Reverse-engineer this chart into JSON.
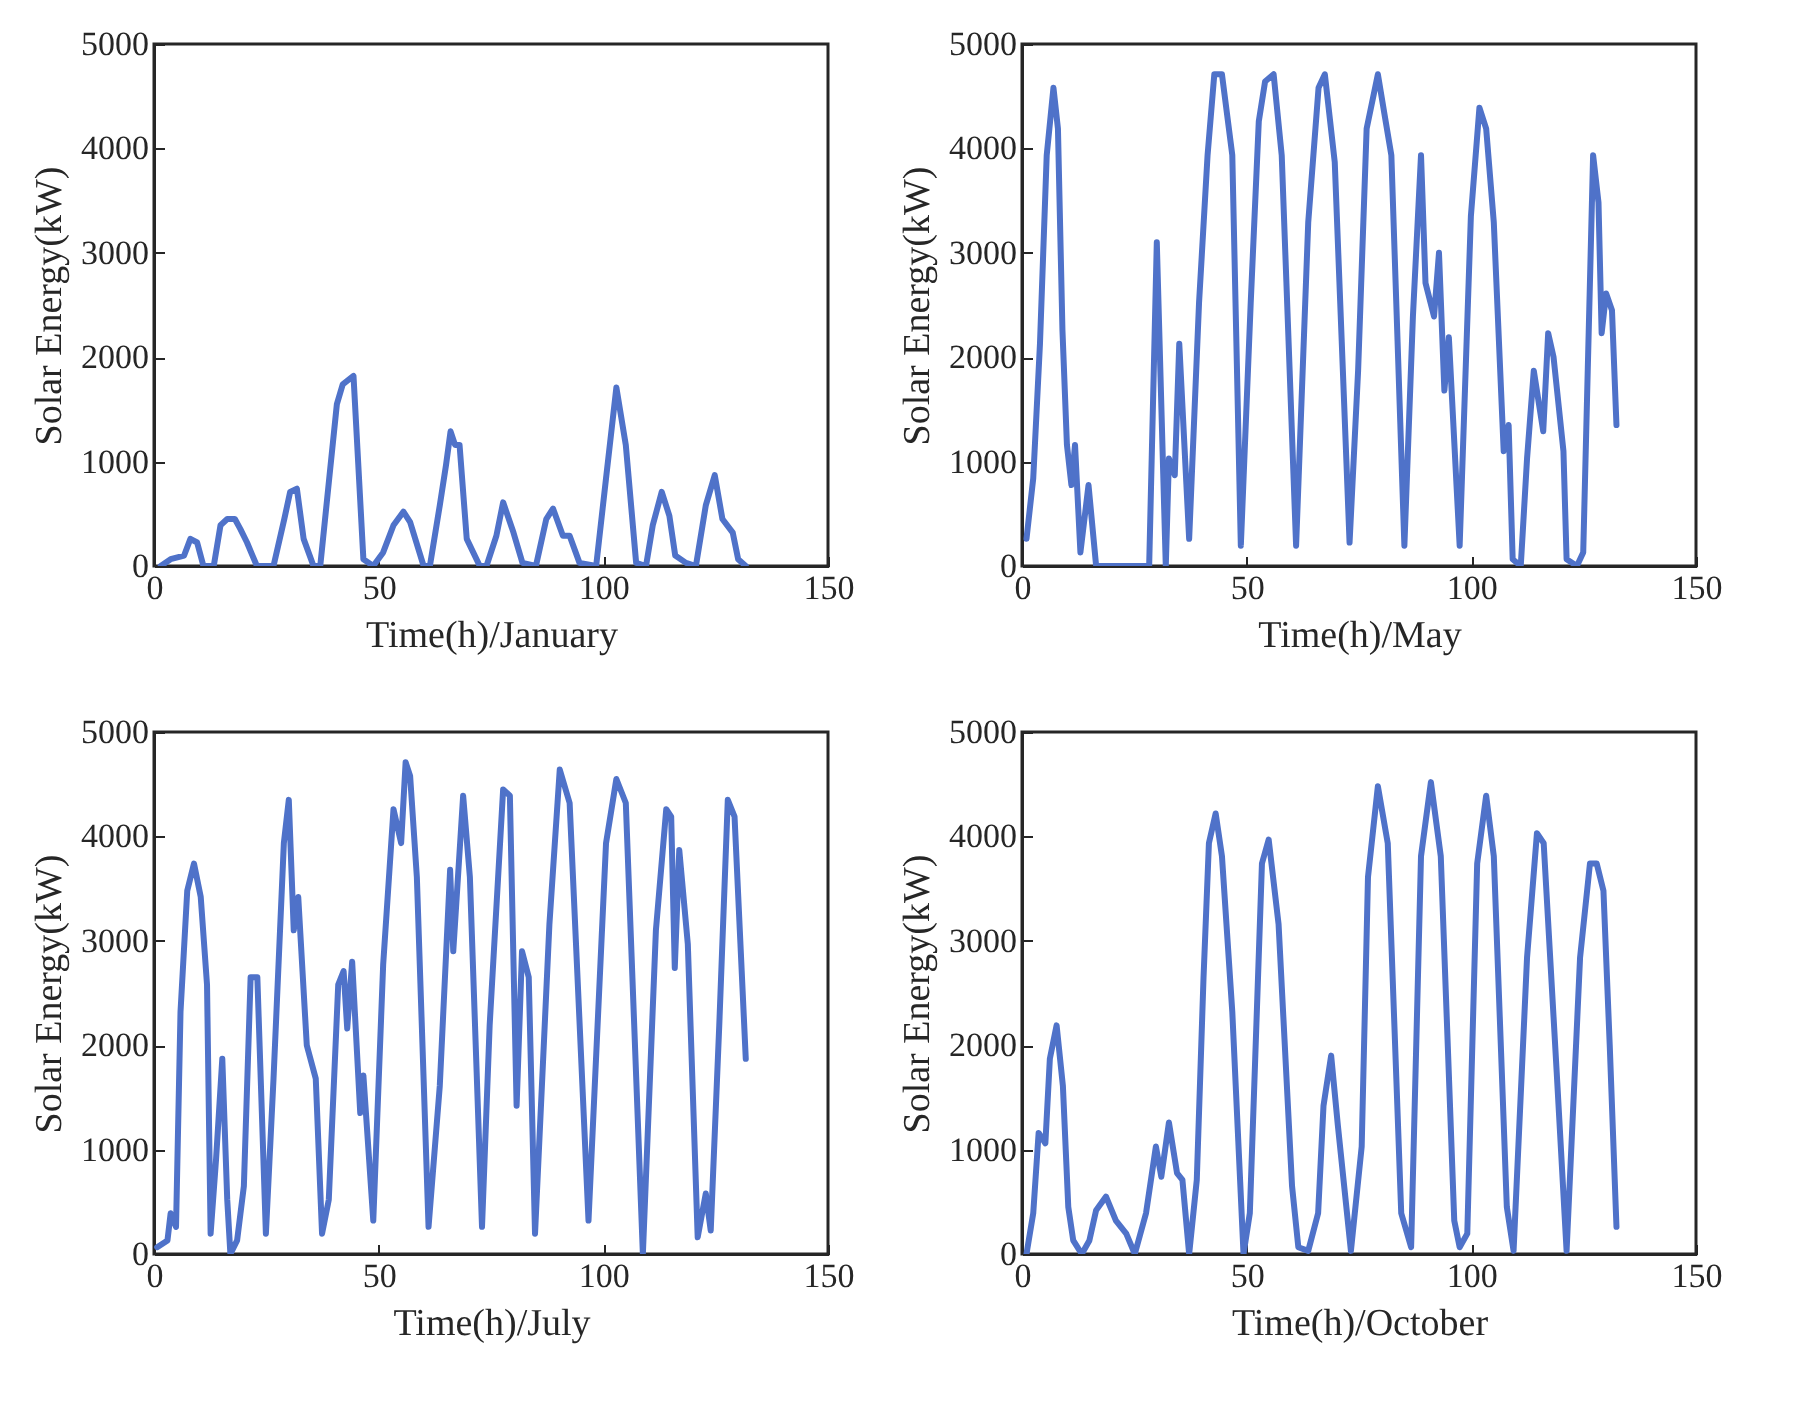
{
  "chart_data": [
    {
      "type": "line",
      "xlabel": "Time(h)/January",
      "ylabel": "Solar Energy(kW)",
      "xlim": [
        0,
        150
      ],
      "xticks": [
        0,
        50,
        100,
        150
      ],
      "ylim": [
        0,
        5000
      ],
      "yticks": [
        0,
        1000,
        2000,
        3000,
        4000,
        5000
      ],
      "grid": false,
      "series": [
        {
          "color": "#4f72c9",
          "x": [
            1.5,
            3.7,
            6.7,
            8.1,
            9.6,
            11,
            13.3,
            14.8,
            16.3,
            18,
            19.2,
            20.7,
            22.9,
            26.6,
            29,
            30.3,
            31.8,
            33.3,
            35.5,
            37,
            39,
            40.7,
            42,
            44.4,
            46.6,
            48.8,
            51,
            53.3,
            55.5,
            57,
            60,
            61.4,
            63.6,
            65,
            66,
            67,
            68,
            69.6,
            72.5,
            74,
            76.2,
            77.7,
            80,
            82,
            85,
            87.3,
            88.8,
            91,
            92.5,
            94.7,
            98.4,
            100.6,
            102.9,
            105,
            107.3,
            109.5,
            111,
            113,
            114.7,
            116,
            118.4,
            120.6,
            122.8,
            124.8,
            126.5,
            128.8,
            130,
            131.7
          ],
          "values": [
            0,
            65,
            100,
            260,
            225,
            0,
            0,
            390,
            450,
            450,
            355,
            225,
            0,
            0,
            450,
            710,
            740,
            260,
            0,
            0,
            840,
            1550,
            1740,
            1820,
            65,
            0,
            130,
            390,
            520,
            420,
            0,
            0,
            580,
            970,
            1290,
            1160,
            1160,
            260,
            0,
            0,
            290,
            610,
            320,
            30,
            0,
            450,
            550,
            290,
            290,
            30,
            0,
            840,
            1710,
            1160,
            30,
            0,
            390,
            710,
            480,
            100,
            30,
            0,
            580,
            870,
            450,
            320,
            65,
            0
          ]
        }
      ]
    },
    {
      "type": "line",
      "xlabel": "Time(h)/May",
      "ylabel": "Solar Energy(kW)",
      "xlim": [
        0,
        150
      ],
      "xticks": [
        0,
        50,
        100,
        150
      ],
      "ylim": [
        0,
        5000
      ],
      "yticks": [
        0,
        1000,
        2000,
        3000,
        4000,
        5000
      ],
      "grid": false,
      "series": [
        {
          "color": "#4f72c9",
          "x": [
            1,
            2.5,
            4,
            5.5,
            7,
            8,
            9,
            10,
            11,
            11.8,
            13,
            14.8,
            16.5,
            28.3,
            30,
            32,
            32.7,
            34,
            35,
            37.2,
            39.4,
            41.3,
            42.8,
            44.5,
            46.8,
            48.7,
            50.9,
            52.7,
            54.1,
            56,
            57.8,
            61,
            63.7,
            66,
            67.4,
            69.6,
            72.9,
            74.8,
            76.7,
            79.2,
            80.7,
            82.2,
            85.1,
            87,
            88.8,
            89.8,
            91.7,
            92.8,
            94,
            95,
            97.4,
            99.9,
            101.8,
            103.3,
            105,
            107.2,
            108.3,
            109.2,
            111,
            112.4,
            113.9,
            116,
            117.1,
            118.3,
            120.5,
            121.2,
            123.5,
            124.9,
            127.1,
            128.3,
            129,
            130,
            131.3,
            132.3
          ],
          "values": [
            260,
            840,
            2130,
            3935,
            4580,
            4190,
            2260,
            1160,
            775,
            1160,
            130,
            775,
            0,
            0,
            3100,
            0,
            1030,
            870,
            2130,
            260,
            2520,
            3935,
            4710,
            4710,
            3935,
            195,
            2520,
            4260,
            4640,
            4710,
            3935,
            195,
            3290,
            4580,
            4710,
            3870,
            225,
            1870,
            4190,
            4710,
            4320,
            3935,
            195,
            2390,
            3935,
            2710,
            2390,
            3000,
            1680,
            2190,
            195,
            3350,
            4390,
            4190,
            3290,
            1100,
            1350,
            65,
            0,
            1030,
            1870,
            1290,
            2230,
            2000,
            1100,
            65,
            0,
            130,
            3935,
            3480,
            2230,
            2610,
            2450,
            1350
          ]
        }
      ]
    },
    {
      "type": "line",
      "xlabel": "Time(h)/July",
      "ylabel": "Solar Energy(kW)",
      "xlim": [
        0,
        150
      ],
      "xticks": [
        0,
        50,
        100,
        150
      ],
      "ylim": [
        0,
        5000
      ],
      "yticks": [
        0,
        1000,
        2000,
        3000,
        4000,
        5000
      ],
      "grid": false,
      "series": [
        {
          "color": "#4f72c9",
          "x": [
            0.7,
            3,
            3.7,
            4.9,
            5.9,
            7.4,
            8.9,
            10.4,
            11.8,
            12.6,
            13.8,
            15.2,
            16.3,
            17,
            18.5,
            20,
            21.5,
            23,
            24.9,
            26.6,
            28.9,
            30,
            31.1,
            32.1,
            34,
            36,
            37.4,
            38.9,
            41,
            42.2,
            43,
            44.1,
            45.9,
            46.6,
            48.8,
            51,
            53.3,
            55,
            56,
            57,
            58.5,
            61.1,
            63.6,
            65.9,
            66.6,
            68.8,
            70.3,
            73,
            74.7,
            77.7,
            79.2,
            80.7,
            81.9,
            83.4,
            84.8,
            88,
            90.3,
            92.5,
            96.7,
            100.6,
            102.9,
            105,
            108.8,
            111.7,
            114,
            115.1,
            115.9,
            116.9,
            118.8,
            121,
            122.8,
            123.9,
            125.8,
            127.7,
            129.2,
            131.7
          ],
          "values": [
            65,
            130,
            390,
            260,
            2320,
            3480,
            3740,
            3420,
            2580,
            195,
            900,
            1870,
            520,
            0,
            130,
            650,
            2650,
            2650,
            195,
            1680,
            3935,
            4350,
            3100,
            3420,
            2000,
            1680,
            195,
            520,
            2580,
            2710,
            2160,
            2800,
            1350,
            1710,
            320,
            2770,
            4260,
            3935,
            4710,
            4580,
            3610,
            260,
            1610,
            3680,
            2900,
            4390,
            3610,
            260,
            2190,
            4450,
            4390,
            1420,
            2900,
            2650,
            195,
            3160,
            4640,
            4320,
            320,
            3935,
            4550,
            4320,
            0,
            3100,
            4260,
            4190,
            2740,
            3870,
            2970,
            160,
            580,
            225,
            2190,
            4350,
            4190,
            1870
          ]
        }
      ]
    },
    {
      "type": "line",
      "xlabel": "Time(h)/October",
      "ylabel": "Solar Energy(kW)",
      "xlim": [
        0,
        150
      ],
      "xticks": [
        0,
        50,
        100,
        150
      ],
      "ylim": [
        0,
        5000
      ],
      "yticks": [
        0,
        1000,
        2000,
        3000,
        4000,
        5000
      ],
      "grid": false,
      "series": [
        {
          "color": "#4f72c9",
          "x": [
            1,
            2.5,
            3.7,
            5.2,
            6.2,
            7.7,
            9.1,
            10.3,
            11.4,
            13.3,
            15,
            16.5,
            18.7,
            20.9,
            23.2,
            25.1,
            27.6,
            29.8,
            31,
            32.7,
            34.5,
            35.7,
            37.2,
            38.9,
            40.4,
            41.6,
            43.1,
            44.5,
            46.8,
            49.3,
            50.7,
            51.9,
            53.4,
            54.9,
            57.1,
            60.1,
            61.5,
            63.7,
            65.9,
            67.1,
            68.8,
            70.3,
            73.2,
            75.6,
            77,
            79.2,
            81.4,
            84.4,
            86.6,
            88.8,
            91,
            93.2,
            96.2,
            97.4,
            99.1,
            101.3,
            103.3,
            105,
            107.9,
            109.4,
            112.4,
            114.6,
            116.1,
            119,
            121.2,
            124.2,
            126.4,
            127.9,
            129.4,
            130.8,
            132.3
          ],
          "values": [
            0,
            390,
            1160,
            1060,
            1870,
            2190,
            1610,
            450,
            130,
            0,
            130,
            420,
            550,
            320,
            195,
            0,
            390,
            1030,
            740,
            1260,
            775,
            710,
            0,
            710,
            2650,
            3935,
            4220,
            3810,
            2320,
            0,
            390,
            1870,
            3740,
            3970,
            3160,
            650,
            65,
            30,
            390,
            1420,
            1900,
            1230,
            30,
            1030,
            3610,
            4480,
            3935,
            390,
            65,
            3810,
            4520,
            3810,
            320,
            65,
            195,
            3740,
            4390,
            3810,
            450,
            30,
            2840,
            4030,
            3935,
            1740,
            30,
            2840,
            3740,
            3740,
            3480,
            2000,
            260
          ]
        }
      ]
    }
  ]
}
